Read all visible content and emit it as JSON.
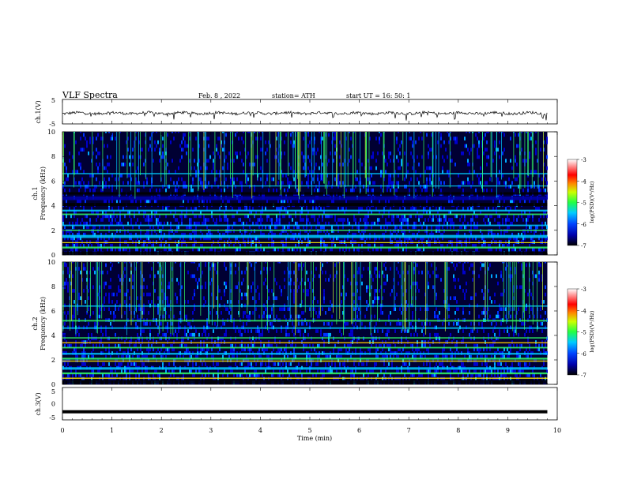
{
  "header": {
    "title": "VLF  Spectra",
    "date": "Feb. 8  , 2022",
    "station": "station= ATH",
    "start": "start  UT  =    16: 50: 1"
  },
  "chart_data": [
    {
      "id": "ch1_waveform",
      "type": "line",
      "ylabel": "ch.1(V)",
      "ylim": [
        -5,
        5
      ],
      "yticks": [
        "5",
        "-5"
      ],
      "xlim": [
        0,
        10
      ]
    },
    {
      "id": "ch1_spectrogram",
      "type": "heatmap",
      "ylabel": "Frequency (kHz)",
      "channel_label": "ch.1",
      "ylim": [
        0,
        10
      ],
      "yticks": [
        "0",
        "2",
        "4",
        "6",
        "8",
        "10"
      ],
      "colorbar": {
        "label": "log(PSD)(V²/Hz)",
        "range": [
          -7,
          -3
        ],
        "ticks": [
          "-3",
          "-4",
          "-5",
          "-6",
          "-7"
        ]
      }
    },
    {
      "id": "ch2_spectrogram",
      "type": "heatmap",
      "ylabel": "Frequency (kHz)",
      "channel_label": "ch.2",
      "ylim": [
        0,
        10
      ],
      "yticks": [
        "0",
        "2",
        "4",
        "6",
        "8",
        "10"
      ],
      "colorbar": {
        "label": "log(PSD)(V²/Hz)",
        "range": [
          -7,
          -3
        ],
        "ticks": [
          "-3",
          "-4",
          "-5",
          "-6",
          "-7"
        ]
      }
    },
    {
      "id": "ch3_waveform",
      "type": "line",
      "ylabel": "ch.3(V)",
      "ylim": [
        -5,
        5
      ],
      "yticks": [
        "5",
        "0",
        "-5"
      ],
      "xlim": [
        0,
        10
      ]
    }
  ],
  "xaxis": {
    "label": "Time  (min)",
    "ticks": [
      "0",
      "1",
      "2",
      "3",
      "4",
      "5",
      "6",
      "7",
      "8",
      "9",
      "10"
    ],
    "range": [
      0,
      10
    ],
    "data_end": 9.8
  },
  "colors": {
    "background": "#000033",
    "deep_blue": "#0000cc",
    "blue": "#0033ff",
    "cyan": "#00ccff",
    "green": "#33ff66",
    "yellow": "#ffee00",
    "red": "#ff0000"
  }
}
